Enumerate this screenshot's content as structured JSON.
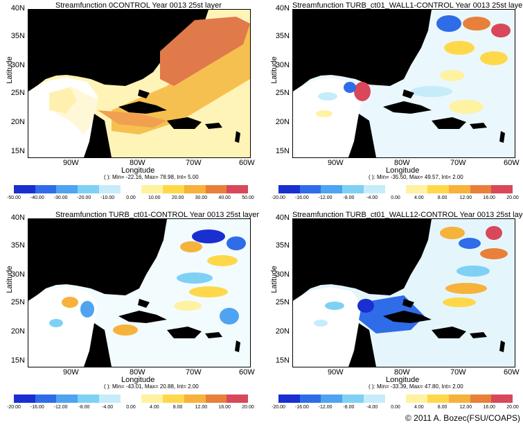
{
  "panels": [
    {
      "title": "Streamfunction 0CONTROL Year 0013 25st layer",
      "stats": "( ): Min= -22.16, Max= 78.98, Int= 5.00",
      "colorbar": [
        "-50.00",
        "-40.00",
        "-30.00",
        "-20.00",
        "-10.00",
        "0.00",
        "10.00",
        "20.00",
        "30.00",
        "40.00",
        "50.00"
      ]
    },
    {
      "title": "Streamfunction TURB_ct01_WALL1-CONTROL Year 0013 25st layer",
      "stats": "( ): Min= -35.50, Max= 49.57, Int= 2.00",
      "colorbar": [
        "-20.00",
        "-16.00",
        "-12.00",
        "-8.00",
        "-4.00",
        "0.00",
        "4.00",
        "8.00",
        "12.00",
        "16.00",
        "20.00"
      ]
    },
    {
      "title": "Streamfunction TURB_ct01-CONTROL Year 0013 25st layer",
      "stats": "( ): Min= -43.01, Max= 20.88, Int= 2.00",
      "colorbar": [
        "-20.00",
        "-16.00",
        "-12.00",
        "-8.00",
        "-4.00",
        "0.00",
        "4.00",
        "8.00",
        "12.00",
        "16.00",
        "20.00"
      ]
    },
    {
      "title": "Streamfunction TURB_ct01_WALL12-CONTROL Year 0013 25st layer",
      "stats": "( ): Min= -33.39, Max= 47.80, Int= 2.00",
      "colorbar": [
        "-20.00",
        "-16.00",
        "-12.00",
        "-8.00",
        "-4.00",
        "0.00",
        "4.00",
        "8.00",
        "12.00",
        "16.00",
        "20.00"
      ]
    }
  ],
  "axes": {
    "ylabel": "Latitude",
    "xlabel": "Longitude",
    "yticks": [
      "40N",
      "35N",
      "30N",
      "25N",
      "20N",
      "15N"
    ],
    "xticks": [
      "90W",
      "80W",
      "70W",
      "60W"
    ]
  },
  "colors": [
    "#1a2fd0",
    "#2f6ce8",
    "#4ea4f0",
    "#7fd0f5",
    "#c6ecfa",
    "#ffffff",
    "#fff2a0",
    "#ffd84a",
    "#f6b23a",
    "#e8803a",
    "#d8485a"
  ],
  "copyright": "© 2011 A. Bozec(FSU/COAPS)"
}
